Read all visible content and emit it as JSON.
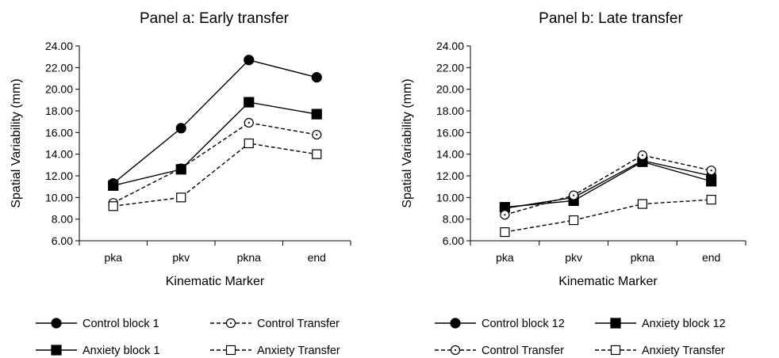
{
  "chart_data": [
    {
      "type": "line",
      "title": "Panel a: Early transfer",
      "xlabel": "Kinematic Marker",
      "ylabel": "Spatial Variability (mm)",
      "categories": [
        "pka",
        "pkv",
        "pkna",
        "end"
      ],
      "ylim": [
        6,
        24
      ],
      "yticks": [
        "6.00",
        "8.00",
        "10.00",
        "12.00",
        "14.00",
        "16.00",
        "18.00",
        "20.00",
        "22.00",
        "24.00"
      ],
      "series": [
        {
          "name": "Control  block 1",
          "values": [
            11.3,
            16.4,
            22.7,
            21.1
          ],
          "line": "solid",
          "marker": "filled-circle"
        },
        {
          "name": "Control Transfer",
          "values": [
            9.5,
            12.7,
            16.9,
            15.8
          ],
          "line": "dashed",
          "marker": "open-circle"
        },
        {
          "name": "Anxiety block 1",
          "values": [
            11.1,
            12.6,
            18.8,
            17.7
          ],
          "line": "solid",
          "marker": "filled-square"
        },
        {
          "name": "Anxiety Transfer",
          "values": [
            9.2,
            10.0,
            15.0,
            14.0
          ],
          "line": "dashed",
          "marker": "open-square"
        }
      ],
      "legend": {
        "placement": "bottom",
        "columns": 2,
        "order": [
          0,
          1,
          2,
          3
        ]
      }
    },
    {
      "type": "line",
      "title": "Panel b: Late transfer",
      "xlabel": "Kinematic Marker",
      "ylabel": "Spatial Variability (mm)",
      "categories": [
        "pka",
        "pkv",
        "pkna",
        "end"
      ],
      "ylim": [
        6,
        24
      ],
      "yticks": [
        "6.00",
        "8.00",
        "10.00",
        "12.00",
        "14.00",
        "16.00",
        "18.00",
        "20.00",
        "22.00",
        "24.00"
      ],
      "series": [
        {
          "name": "Control block 12",
          "values": [
            9.0,
            10.0,
            13.4,
            12.0
          ],
          "line": "solid",
          "marker": "filled-circle"
        },
        {
          "name": "Anxiety block 12",
          "values": [
            9.1,
            9.7,
            13.3,
            11.5
          ],
          "line": "solid",
          "marker": "filled-square"
        },
        {
          "name": "Control Transfer",
          "values": [
            8.4,
            10.2,
            13.9,
            12.5
          ],
          "line": "dashed",
          "marker": "open-circle"
        },
        {
          "name": "Anxiety Transfer",
          "values": [
            6.8,
            7.9,
            9.4,
            9.8
          ],
          "line": "dashed",
          "marker": "open-square"
        }
      ],
      "legend": {
        "placement": "bottom",
        "columns": 2,
        "order": [
          0,
          1,
          2,
          3
        ]
      }
    }
  ]
}
